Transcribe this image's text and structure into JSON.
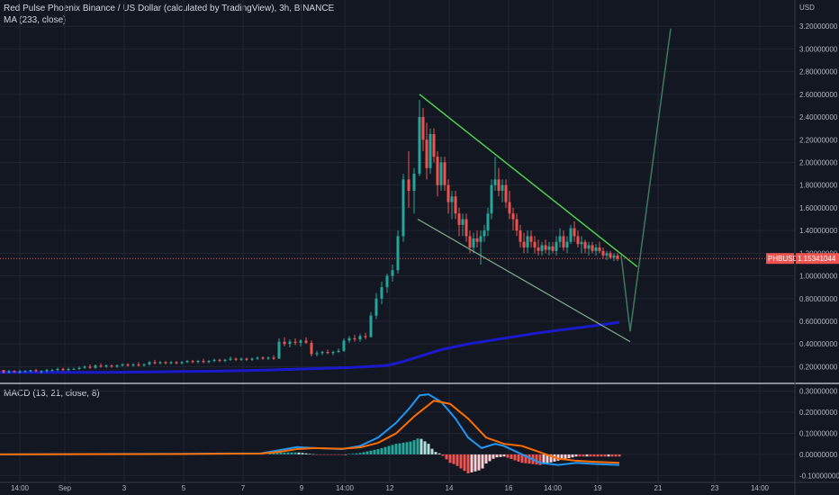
{
  "header": {
    "title": "Red Pulse Phoenix Binance / US Dollar (calculated by TradingView), 3h, BINANCE",
    "ma_label": "MA (233, close)",
    "currency": "USD",
    "macd_label": "MACD (13, 21, close, 8)"
  },
  "colors": {
    "background": "#131722",
    "up": "#26a69a",
    "down": "#ef5350",
    "ma": "#1a1acc",
    "macd_line": "#2196f3",
    "signal_line": "#ff6d00",
    "resistance": "#4cd24c",
    "support": "#7fb08a",
    "projection": "#3c7a63",
    "price_tag": "#ef5350"
  },
  "chart_data": [
    {
      "type": "candlestick",
      "title": "Red Pulse Phoenix Binance / US Dollar (calculated by TradingView), 3h, BINANCE",
      "symbol": "PHBUSD",
      "last_price": "1.15341044",
      "ylim": [
        0.1,
        3.4
      ],
      "yticks": [
        "3.20000000",
        "3.00000000",
        "2.80000000",
        "2.60000000",
        "2.40000000",
        "2.20000000",
        "2.00000000",
        "1.80000000",
        "1.60000000",
        "1.40000000",
        "1.20000000",
        "1.00000000",
        "0.80000000",
        "0.60000000",
        "0.40000000",
        "0.20000000"
      ],
      "ytick_values": [
        3.2,
        3.0,
        2.8,
        2.6,
        2.4,
        2.2,
        2.0,
        1.8,
        1.6,
        1.4,
        1.2,
        1.0,
        0.8,
        0.6,
        0.4,
        0.2
      ],
      "xlim": [
        0,
        860
      ],
      "xticks": [
        {
          "label": "14:00",
          "t": 22
        },
        {
          "label": "Sep",
          "t": 72
        },
        {
          "label": "3",
          "t": 138
        },
        {
          "label": "5",
          "t": 204
        },
        {
          "label": "7",
          "t": 270
        },
        {
          "label": "9",
          "t": 335
        },
        {
          "label": "14:00",
          "t": 383
        },
        {
          "label": "12",
          "t": 433
        },
        {
          "label": "14",
          "t": 499
        },
        {
          "label": "16",
          "t": 565
        },
        {
          "label": "14:00",
          "t": 614
        },
        {
          "label": "19",
          "t": 664
        },
        {
          "label": "21",
          "t": 731
        },
        {
          "label": "23",
          "t": 794
        },
        {
          "label": "14:00",
          "t": 844
        }
      ],
      "candles": [
        [
          4,
          0.17,
          0.17,
          0.14,
          0.15
        ],
        [
          10,
          0.15,
          0.17,
          0.14,
          0.16
        ],
        [
          16,
          0.16,
          0.17,
          0.15,
          0.15
        ],
        [
          22,
          0.15,
          0.17,
          0.14,
          0.16
        ],
        [
          28,
          0.16,
          0.17,
          0.15,
          0.16
        ],
        [
          34,
          0.16,
          0.17,
          0.15,
          0.17
        ],
        [
          40,
          0.17,
          0.18,
          0.15,
          0.16
        ],
        [
          46,
          0.16,
          0.17,
          0.14,
          0.16
        ],
        [
          52,
          0.16,
          0.18,
          0.15,
          0.17
        ],
        [
          58,
          0.17,
          0.18,
          0.16,
          0.17
        ],
        [
          64,
          0.17,
          0.19,
          0.16,
          0.18
        ],
        [
          70,
          0.18,
          0.19,
          0.16,
          0.17
        ],
        [
          76,
          0.17,
          0.19,
          0.16,
          0.18
        ],
        [
          82,
          0.18,
          0.19,
          0.17,
          0.18
        ],
        [
          88,
          0.18,
          0.2,
          0.17,
          0.19
        ],
        [
          94,
          0.19,
          0.21,
          0.18,
          0.2
        ],
        [
          100,
          0.2,
          0.22,
          0.18,
          0.19
        ],
        [
          106,
          0.19,
          0.22,
          0.18,
          0.21
        ],
        [
          112,
          0.21,
          0.23,
          0.19,
          0.2
        ],
        [
          118,
          0.2,
          0.22,
          0.19,
          0.21
        ],
        [
          124,
          0.21,
          0.22,
          0.19,
          0.2
        ],
        [
          130,
          0.2,
          0.22,
          0.19,
          0.21
        ],
        [
          136,
          0.21,
          0.23,
          0.2,
          0.22
        ],
        [
          142,
          0.22,
          0.23,
          0.2,
          0.21
        ],
        [
          148,
          0.21,
          0.23,
          0.2,
          0.22
        ],
        [
          154,
          0.22,
          0.24,
          0.2,
          0.21
        ],
        [
          160,
          0.21,
          0.23,
          0.2,
          0.22
        ],
        [
          166,
          0.22,
          0.25,
          0.21,
          0.24
        ],
        [
          172,
          0.24,
          0.26,
          0.22,
          0.23
        ],
        [
          178,
          0.23,
          0.25,
          0.22,
          0.24
        ],
        [
          184,
          0.24,
          0.25,
          0.22,
          0.23
        ],
        [
          190,
          0.23,
          0.25,
          0.22,
          0.24
        ],
        [
          196,
          0.24,
          0.25,
          0.22,
          0.23
        ],
        [
          202,
          0.23,
          0.25,
          0.22,
          0.24
        ],
        [
          208,
          0.24,
          0.26,
          0.23,
          0.25
        ],
        [
          214,
          0.25,
          0.26,
          0.23,
          0.24
        ],
        [
          220,
          0.24,
          0.26,
          0.23,
          0.25
        ],
        [
          226,
          0.25,
          0.27,
          0.23,
          0.24
        ],
        [
          232,
          0.24,
          0.26,
          0.23,
          0.25
        ],
        [
          238,
          0.25,
          0.27,
          0.24,
          0.26
        ],
        [
          244,
          0.26,
          0.27,
          0.24,
          0.25
        ],
        [
          250,
          0.25,
          0.27,
          0.24,
          0.26
        ],
        [
          256,
          0.26,
          0.29,
          0.25,
          0.27
        ],
        [
          262,
          0.27,
          0.28,
          0.25,
          0.26
        ],
        [
          268,
          0.26,
          0.28,
          0.25,
          0.27
        ],
        [
          274,
          0.27,
          0.28,
          0.25,
          0.26
        ],
        [
          280,
          0.26,
          0.28,
          0.25,
          0.27
        ],
        [
          286,
          0.27,
          0.29,
          0.26,
          0.28
        ],
        [
          292,
          0.28,
          0.29,
          0.26,
          0.27
        ],
        [
          298,
          0.27,
          0.29,
          0.26,
          0.28
        ],
        [
          304,
          0.28,
          0.3,
          0.26,
          0.27
        ],
        [
          310,
          0.27,
          0.45,
          0.27,
          0.42
        ],
        [
          316,
          0.42,
          0.46,
          0.38,
          0.4
        ],
        [
          322,
          0.4,
          0.44,
          0.37,
          0.42
        ],
        [
          328,
          0.42,
          0.45,
          0.39,
          0.41
        ],
        [
          334,
          0.41,
          0.44,
          0.38,
          0.43
        ],
        [
          340,
          0.43,
          0.46,
          0.4,
          0.41
        ],
        [
          346,
          0.41,
          0.43,
          0.29,
          0.31
        ],
        [
          352,
          0.31,
          0.34,
          0.29,
          0.32
        ],
        [
          358,
          0.32,
          0.34,
          0.3,
          0.33
        ],
        [
          364,
          0.33,
          0.35,
          0.31,
          0.32
        ],
        [
          370,
          0.32,
          0.34,
          0.3,
          0.33
        ],
        [
          376,
          0.33,
          0.36,
          0.32,
          0.34
        ],
        [
          382,
          0.34,
          0.45,
          0.33,
          0.43
        ],
        [
          388,
          0.43,
          0.47,
          0.41,
          0.45
        ],
        [
          394,
          0.45,
          0.48,
          0.42,
          0.44
        ],
        [
          400,
          0.44,
          0.49,
          0.42,
          0.47
        ],
        [
          406,
          0.47,
          0.5,
          0.44,
          0.46
        ],
        [
          412,
          0.46,
          0.68,
          0.46,
          0.65
        ],
        [
          418,
          0.65,
          0.85,
          0.62,
          0.8
        ],
        [
          424,
          0.8,
          0.95,
          0.75,
          0.9
        ],
        [
          430,
          0.9,
          1.02,
          0.85,
          1.0
        ],
        [
          436,
          1.0,
          1.1,
          0.95,
          1.05
        ],
        [
          442,
          1.05,
          1.4,
          1.02,
          1.35
        ],
        [
          448,
          1.35,
          1.9,
          1.3,
          1.85
        ],
        [
          454,
          1.85,
          2.1,
          1.6,
          1.75
        ],
        [
          460,
          1.75,
          1.95,
          1.55,
          1.9
        ],
        [
          466,
          1.9,
          2.55,
          1.88,
          2.4
        ],
        [
          470,
          2.4,
          2.48,
          2.1,
          2.2
        ],
        [
          474,
          2.2,
          2.35,
          1.85,
          1.95
        ],
        [
          478,
          1.95,
          2.3,
          1.9,
          2.25
        ],
        [
          482,
          2.25,
          2.3,
          2.0,
          2.05
        ],
        [
          486,
          2.05,
          2.1,
          1.7,
          1.8
        ],
        [
          490,
          1.8,
          2.05,
          1.75,
          2.0
        ],
        [
          494,
          2.0,
          2.05,
          1.75,
          1.8
        ],
        [
          498,
          1.8,
          1.85,
          1.55,
          1.65
        ],
        [
          502,
          1.65,
          1.75,
          1.5,
          1.7
        ],
        [
          506,
          1.7,
          1.75,
          1.5,
          1.55
        ],
        [
          510,
          1.55,
          1.6,
          1.35,
          1.45
        ],
        [
          514,
          1.45,
          1.55,
          1.35,
          1.5
        ],
        [
          518,
          1.5,
          1.55,
          1.3,
          1.35
        ],
        [
          522,
          1.35,
          1.4,
          1.2,
          1.25
        ],
        [
          526,
          1.25,
          1.38,
          1.2,
          1.33
        ],
        [
          530,
          1.33,
          1.4,
          1.25,
          1.3
        ],
        [
          534,
          1.3,
          1.4,
          1.1,
          1.35
        ],
        [
          538,
          1.35,
          1.45,
          1.3,
          1.4
        ],
        [
          542,
          1.4,
          1.6,
          1.35,
          1.55
        ],
        [
          546,
          1.55,
          1.85,
          1.5,
          1.8
        ],
        [
          550,
          1.8,
          2.05,
          1.75,
          1.85
        ],
        [
          554,
          1.85,
          1.95,
          1.7,
          1.75
        ],
        [
          558,
          1.75,
          1.85,
          1.65,
          1.8
        ],
        [
          562,
          1.8,
          1.85,
          1.6,
          1.65
        ],
        [
          566,
          1.65,
          1.75,
          1.5,
          1.55
        ],
        [
          570,
          1.55,
          1.6,
          1.4,
          1.5
        ],
        [
          574,
          1.5,
          1.55,
          1.35,
          1.4
        ],
        [
          578,
          1.4,
          1.45,
          1.25,
          1.3
        ],
        [
          582,
          1.3,
          1.38,
          1.2,
          1.25
        ],
        [
          586,
          1.25,
          1.4,
          1.2,
          1.35
        ],
        [
          590,
          1.35,
          1.4,
          1.25,
          1.3
        ],
        [
          594,
          1.3,
          1.35,
          1.2,
          1.25
        ],
        [
          598,
          1.25,
          1.32,
          1.18,
          1.22
        ],
        [
          602,
          1.22,
          1.3,
          1.18,
          1.27
        ],
        [
          606,
          1.27,
          1.32,
          1.2,
          1.23
        ],
        [
          610,
          1.23,
          1.3,
          1.18,
          1.26
        ],
        [
          614,
          1.26,
          1.3,
          1.2,
          1.22
        ],
        [
          618,
          1.22,
          1.35,
          1.18,
          1.3
        ],
        [
          622,
          1.3,
          1.42,
          1.25,
          1.35
        ],
        [
          626,
          1.35,
          1.4,
          1.22,
          1.25
        ],
        [
          630,
          1.25,
          1.35,
          1.2,
          1.3
        ],
        [
          634,
          1.3,
          1.45,
          1.28,
          1.42
        ],
        [
          638,
          1.42,
          1.48,
          1.3,
          1.35
        ],
        [
          642,
          1.35,
          1.4,
          1.25,
          1.28
        ],
        [
          646,
          1.28,
          1.35,
          1.2,
          1.3
        ],
        [
          650,
          1.3,
          1.32,
          1.2,
          1.24
        ],
        [
          654,
          1.24,
          1.3,
          1.18,
          1.27
        ],
        [
          658,
          1.27,
          1.3,
          1.2,
          1.22
        ],
        [
          662,
          1.22,
          1.28,
          1.18,
          1.25
        ],
        [
          666,
          1.25,
          1.3,
          1.2,
          1.22
        ],
        [
          670,
          1.22,
          1.25,
          1.15,
          1.18
        ],
        [
          674,
          1.18,
          1.22,
          1.14,
          1.2
        ],
        [
          678,
          1.2,
          1.22,
          1.15,
          1.16
        ],
        [
          682,
          1.16,
          1.2,
          1.13,
          1.18
        ],
        [
          686,
          1.18,
          1.2,
          1.13,
          1.15
        ]
      ],
      "ma_233": [
        [
          0,
          0.15
        ],
        [
          60,
          0.15
        ],
        [
          120,
          0.15
        ],
        [
          180,
          0.155
        ],
        [
          240,
          0.16
        ],
        [
          300,
          0.17
        ],
        [
          340,
          0.18
        ],
        [
          380,
          0.19
        ],
        [
          410,
          0.2
        ],
        [
          430,
          0.21
        ],
        [
          450,
          0.25
        ],
        [
          470,
          0.3
        ],
        [
          490,
          0.35
        ],
        [
          520,
          0.4
        ],
        [
          560,
          0.45
        ],
        [
          600,
          0.5
        ],
        [
          640,
          0.54
        ],
        [
          688,
          0.59
        ]
      ],
      "drawings": {
        "resistance": [
          [
            466,
            2.6
          ],
          [
            708,
            1.08
          ]
        ],
        "support": [
          [
            464,
            1.5
          ],
          [
            700,
            0.42
          ]
        ],
        "projection": [
          [
            690,
            1.18
          ],
          [
            700,
            0.51
          ],
          [
            745,
            3.18
          ]
        ]
      }
    },
    {
      "type": "macd",
      "title": "MACD (13, 21, close, 8)",
      "ylim": [
        -0.12,
        0.32
      ],
      "yticks": [
        "0.30000000",
        "0.20000000",
        "0.10000000",
        "0.00000000",
        "-0.10000000"
      ],
      "ytick_values": [
        0.3,
        0.2,
        0.1,
        0.0,
        -0.1
      ],
      "macd": [
        [
          0,
          0.0
        ],
        [
          100,
          0.002
        ],
        [
          200,
          0.003
        ],
        [
          290,
          0.005
        ],
        [
          310,
          0.02
        ],
        [
          330,
          0.035
        ],
        [
          350,
          0.03
        ],
        [
          380,
          0.025
        ],
        [
          400,
          0.04
        ],
        [
          420,
          0.08
        ],
        [
          440,
          0.15
        ],
        [
          455,
          0.22
        ],
        [
          466,
          0.28
        ],
        [
          476,
          0.285
        ],
        [
          490,
          0.25
        ],
        [
          506,
          0.17
        ],
        [
          520,
          0.08
        ],
        [
          535,
          0.03
        ],
        [
          550,
          0.05
        ],
        [
          560,
          0.04
        ],
        [
          580,
          0.0
        ],
        [
          600,
          -0.04
        ],
        [
          620,
          -0.05
        ],
        [
          640,
          -0.04
        ],
        [
          660,
          -0.045
        ],
        [
          688,
          -0.05
        ]
      ],
      "signal": [
        [
          0,
          0.0
        ],
        [
          100,
          0.001
        ],
        [
          200,
          0.002
        ],
        [
          290,
          0.004
        ],
        [
          310,
          0.012
        ],
        [
          330,
          0.025
        ],
        [
          350,
          0.03
        ],
        [
          380,
          0.027
        ],
        [
          400,
          0.033
        ],
        [
          420,
          0.055
        ],
        [
          440,
          0.1
        ],
        [
          460,
          0.18
        ],
        [
          482,
          0.255
        ],
        [
          500,
          0.24
        ],
        [
          520,
          0.17
        ],
        [
          540,
          0.08
        ],
        [
          560,
          0.05
        ],
        [
          580,
          0.04
        ],
        [
          600,
          0.01
        ],
        [
          620,
          -0.02
        ],
        [
          640,
          -0.03
        ],
        [
          660,
          -0.035
        ],
        [
          688,
          -0.04
        ]
      ]
    }
  ]
}
